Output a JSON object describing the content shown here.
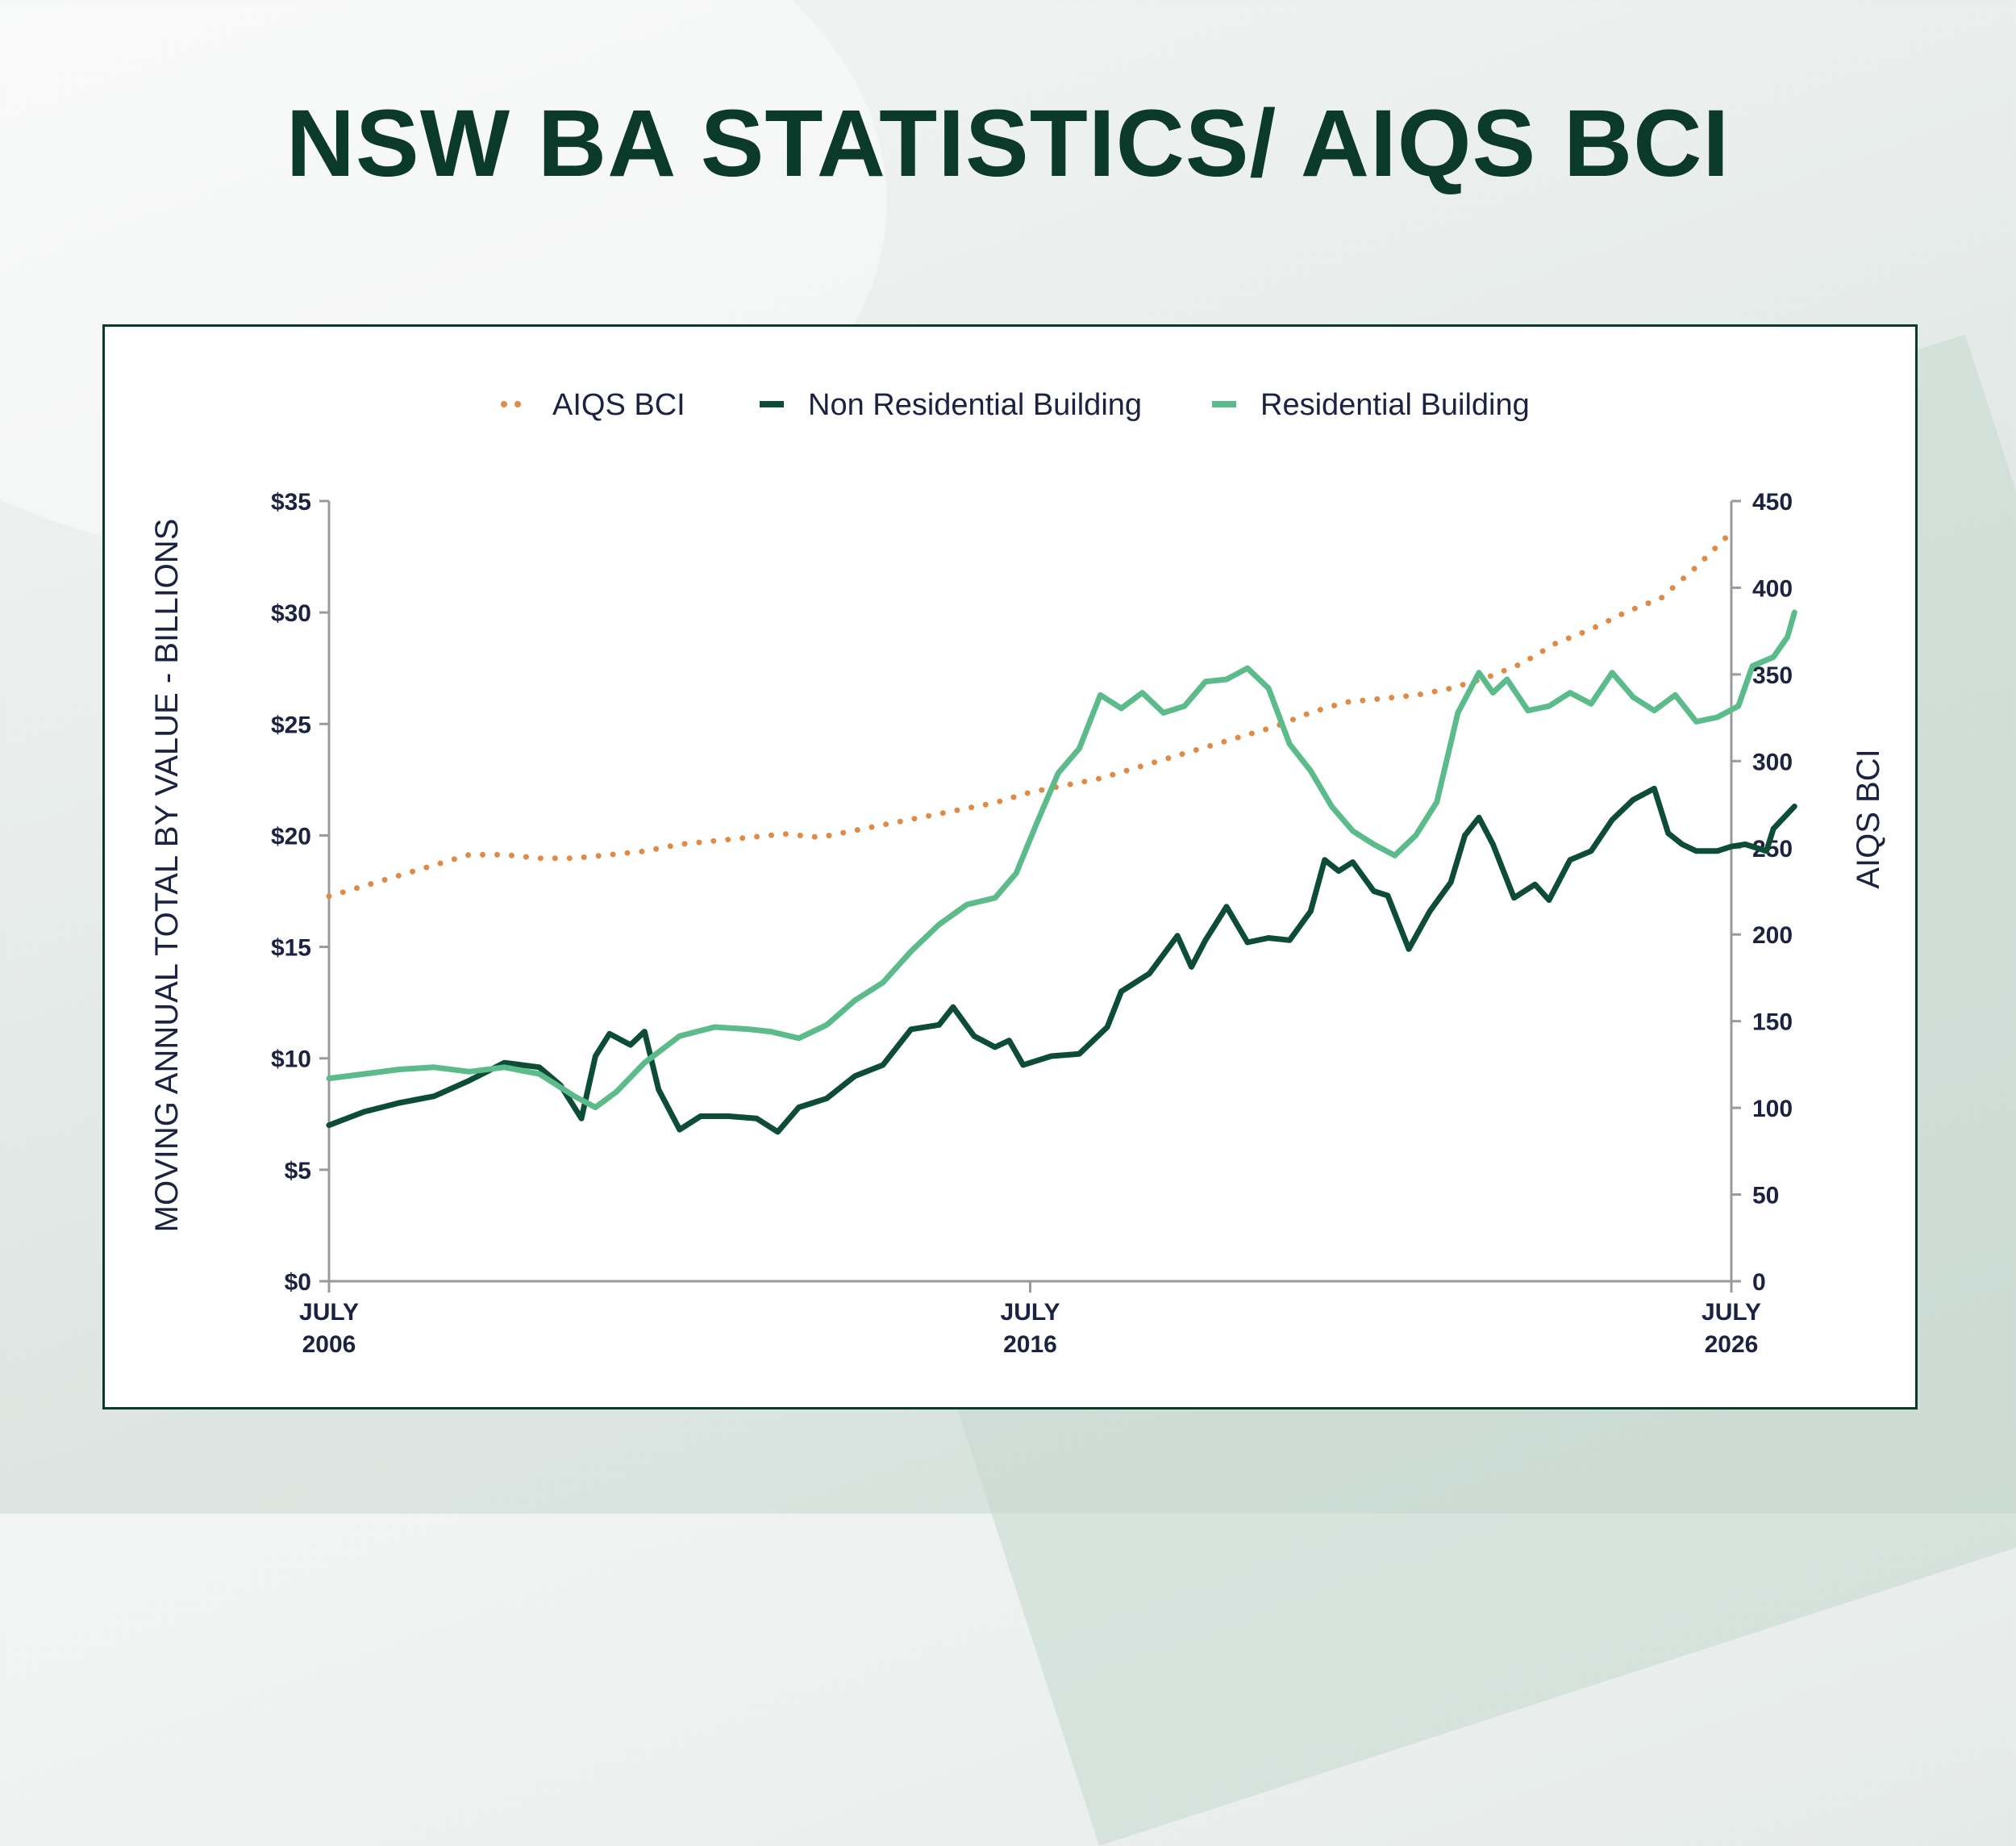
{
  "page": {
    "title": "NSW BA STATISTICS/ AIQS BCI"
  },
  "colors": {
    "bci": "#e08a45",
    "non_residential": "#0d4d35",
    "residential": "#5cbb8a",
    "axis": "#9a9a9a",
    "text": "#1c2340"
  },
  "chart_data": {
    "type": "line",
    "legend_position": "top-center",
    "grid": false,
    "ylabel": "MOVING ANNUAL TOTAL BY VALUE - BILLIONS",
    "y2label": "AIQS BCI",
    "xlim": [
      2006.5,
      2026.5
    ],
    "ylim": [
      0,
      35
    ],
    "y2lim": [
      0,
      450
    ],
    "x_ticks": [
      {
        "x": 2006.5,
        "line1": "JULY",
        "line2": "2006"
      },
      {
        "x": 2016.5,
        "line1": "JULY",
        "line2": "2016"
      },
      {
        "x": 2026.5,
        "line1": "JULY",
        "line2": "2026"
      }
    ],
    "y_ticks": [
      {
        "v": 0,
        "label": "$0"
      },
      {
        "v": 5,
        "label": "$5"
      },
      {
        "v": 10,
        "label": "$10"
      },
      {
        "v": 15,
        "label": "$15"
      },
      {
        "v": 20,
        "label": "$20"
      },
      {
        "v": 25,
        "label": "$25"
      },
      {
        "v": 30,
        "label": "$30"
      },
      {
        "v": 35,
        "label": "$35"
      }
    ],
    "y2_ticks": [
      {
        "v": 0,
        "label": "0"
      },
      {
        "v": 50,
        "label": "50"
      },
      {
        "v": 100,
        "label": "100"
      },
      {
        "v": 150,
        "label": "150"
      },
      {
        "v": 200,
        "label": "200"
      },
      {
        "v": 250,
        "label": "250"
      },
      {
        "v": 300,
        "label": "300"
      },
      {
        "v": 350,
        "label": "350"
      },
      {
        "v": 400,
        "label": "400"
      },
      {
        "v": 450,
        "label": "450"
      }
    ],
    "series": [
      {
        "name": "AIQS BCI",
        "axis": "right",
        "style": "dotted",
        "color_key": "bci",
        "points": [
          [
            2006.5,
            222
          ],
          [
            2007.0,
            228
          ],
          [
            2007.5,
            234
          ],
          [
            2008.0,
            240
          ],
          [
            2008.5,
            246
          ],
          [
            2009.0,
            246
          ],
          [
            2009.5,
            244
          ],
          [
            2010.0,
            244
          ],
          [
            2010.5,
            246
          ],
          [
            2011.0,
            248
          ],
          [
            2011.5,
            252
          ],
          [
            2012.0,
            254
          ],
          [
            2012.5,
            256
          ],
          [
            2013.0,
            258
          ],
          [
            2013.5,
            256
          ],
          [
            2014.0,
            260
          ],
          [
            2014.5,
            264
          ],
          [
            2015.0,
            268
          ],
          [
            2015.5,
            272
          ],
          [
            2016.0,
            276
          ],
          [
            2016.5,
            282
          ],
          [
            2017.0,
            286
          ],
          [
            2017.5,
            290
          ],
          [
            2018.0,
            296
          ],
          [
            2018.5,
            302
          ],
          [
            2019.0,
            308
          ],
          [
            2019.5,
            314
          ],
          [
            2020.0,
            320
          ],
          [
            2020.5,
            328
          ],
          [
            2021.0,
            334
          ],
          [
            2021.5,
            336
          ],
          [
            2022.0,
            338
          ],
          [
            2022.5,
            342
          ],
          [
            2023.0,
            348
          ],
          [
            2023.5,
            356
          ],
          [
            2024.0,
            368
          ],
          [
            2024.5,
            376
          ],
          [
            2025.0,
            386
          ],
          [
            2025.5,
            394
          ],
          [
            2026.0,
            412
          ],
          [
            2026.5,
            432
          ]
        ]
      },
      {
        "name": "Non Residential Building",
        "axis": "left",
        "style": "solid",
        "color_key": "non_residential",
        "points": [
          [
            2006.5,
            7.0
          ],
          [
            2007.0,
            7.6
          ],
          [
            2007.5,
            8.0
          ],
          [
            2008.0,
            8.3
          ],
          [
            2008.5,
            9.0
          ],
          [
            2009.0,
            9.8
          ],
          [
            2009.5,
            9.6
          ],
          [
            2009.8,
            8.8
          ],
          [
            2010.1,
            7.3
          ],
          [
            2010.3,
            10.1
          ],
          [
            2010.5,
            11.1
          ],
          [
            2010.8,
            10.6
          ],
          [
            2011.0,
            11.2
          ],
          [
            2011.2,
            8.6
          ],
          [
            2011.5,
            6.8
          ],
          [
            2011.8,
            7.4
          ],
          [
            2012.2,
            7.4
          ],
          [
            2012.6,
            7.3
          ],
          [
            2012.9,
            6.7
          ],
          [
            2013.2,
            7.8
          ],
          [
            2013.6,
            8.2
          ],
          [
            2014.0,
            9.2
          ],
          [
            2014.4,
            9.7
          ],
          [
            2014.8,
            11.3
          ],
          [
            2015.2,
            11.5
          ],
          [
            2015.4,
            12.3
          ],
          [
            2015.7,
            11.0
          ],
          [
            2016.0,
            10.5
          ],
          [
            2016.2,
            10.8
          ],
          [
            2016.4,
            9.7
          ],
          [
            2016.8,
            10.1
          ],
          [
            2017.2,
            10.2
          ],
          [
            2017.6,
            11.4
          ],
          [
            2017.8,
            13.0
          ],
          [
            2018.2,
            13.8
          ],
          [
            2018.6,
            15.5
          ],
          [
            2018.8,
            14.1
          ],
          [
            2019.0,
            15.3
          ],
          [
            2019.3,
            16.8
          ],
          [
            2019.6,
            15.2
          ],
          [
            2019.9,
            15.4
          ],
          [
            2020.2,
            15.3
          ],
          [
            2020.5,
            16.6
          ],
          [
            2020.7,
            18.9
          ],
          [
            2020.9,
            18.4
          ],
          [
            2021.1,
            18.8
          ],
          [
            2021.4,
            17.5
          ],
          [
            2021.6,
            17.3
          ],
          [
            2021.9,
            14.9
          ],
          [
            2022.2,
            16.6
          ],
          [
            2022.5,
            17.9
          ],
          [
            2022.7,
            20.0
          ],
          [
            2022.9,
            20.8
          ],
          [
            2023.1,
            19.6
          ],
          [
            2023.4,
            17.2
          ],
          [
            2023.7,
            17.8
          ],
          [
            2023.9,
            17.1
          ],
          [
            2024.2,
            18.9
          ],
          [
            2024.5,
            19.3
          ],
          [
            2024.8,
            20.7
          ],
          [
            2025.1,
            21.6
          ],
          [
            2025.4,
            22.1
          ],
          [
            2025.6,
            20.1
          ],
          [
            2025.8,
            19.6
          ],
          [
            2026.0,
            19.3
          ],
          [
            2026.3,
            19.3
          ],
          [
            2026.5,
            19.5
          ],
          [
            2026.7,
            19.6
          ],
          [
            2026.9,
            19.4
          ],
          [
            2027.0,
            19.3
          ],
          [
            2027.1,
            20.3
          ],
          [
            2027.4,
            21.3
          ]
        ]
      },
      {
        "name": "Residential Building",
        "axis": "left",
        "style": "solid",
        "color_key": "residential",
        "points": [
          [
            2006.5,
            9.1
          ],
          [
            2007.0,
            9.3
          ],
          [
            2007.5,
            9.5
          ],
          [
            2008.0,
            9.6
          ],
          [
            2008.5,
            9.4
          ],
          [
            2009.0,
            9.6
          ],
          [
            2009.5,
            9.3
          ],
          [
            2010.0,
            8.3
          ],
          [
            2010.3,
            7.8
          ],
          [
            2010.6,
            8.5
          ],
          [
            2011.0,
            9.8
          ],
          [
            2011.5,
            11.0
          ],
          [
            2012.0,
            11.4
          ],
          [
            2012.5,
            11.3
          ],
          [
            2012.8,
            11.2
          ],
          [
            2013.2,
            10.9
          ],
          [
            2013.6,
            11.5
          ],
          [
            2014.0,
            12.6
          ],
          [
            2014.4,
            13.4
          ],
          [
            2014.8,
            14.8
          ],
          [
            2015.2,
            16.0
          ],
          [
            2015.6,
            16.9
          ],
          [
            2016.0,
            17.2
          ],
          [
            2016.3,
            18.3
          ],
          [
            2016.6,
            20.6
          ],
          [
            2016.9,
            22.8
          ],
          [
            2017.2,
            23.9
          ],
          [
            2017.5,
            26.3
          ],
          [
            2017.8,
            25.7
          ],
          [
            2018.1,
            26.4
          ],
          [
            2018.4,
            25.5
          ],
          [
            2018.7,
            25.8
          ],
          [
            2019.0,
            26.9
          ],
          [
            2019.3,
            27.0
          ],
          [
            2019.6,
            27.5
          ],
          [
            2019.9,
            26.6
          ],
          [
            2020.2,
            24.1
          ],
          [
            2020.5,
            22.9
          ],
          [
            2020.8,
            21.3
          ],
          [
            2021.1,
            20.2
          ],
          [
            2021.4,
            19.6
          ],
          [
            2021.7,
            19.1
          ],
          [
            2022.0,
            20.0
          ],
          [
            2022.3,
            21.5
          ],
          [
            2022.6,
            25.5
          ],
          [
            2022.9,
            27.3
          ],
          [
            2023.1,
            26.4
          ],
          [
            2023.3,
            27.0
          ],
          [
            2023.6,
            25.6
          ],
          [
            2023.9,
            25.8
          ],
          [
            2024.2,
            26.4
          ],
          [
            2024.5,
            25.9
          ],
          [
            2024.8,
            27.3
          ],
          [
            2025.1,
            26.2
          ],
          [
            2025.4,
            25.6
          ],
          [
            2025.7,
            26.3
          ],
          [
            2026.0,
            25.1
          ],
          [
            2026.3,
            25.3
          ],
          [
            2026.6,
            25.8
          ],
          [
            2026.8,
            27.6
          ],
          [
            2027.1,
            28.0
          ],
          [
            2027.3,
            28.9
          ],
          [
            2027.4,
            30.0
          ]
        ]
      }
    ]
  }
}
